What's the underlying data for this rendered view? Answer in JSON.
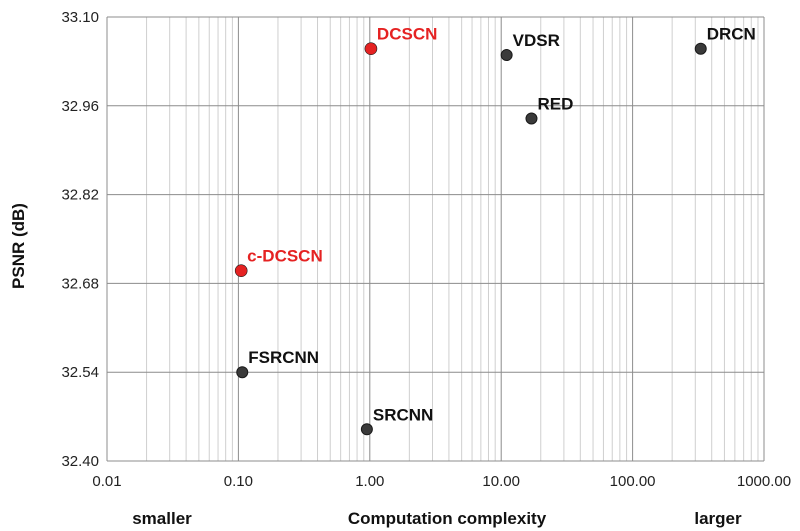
{
  "chart_data": {
    "type": "scatter",
    "xscale": "log",
    "xlim": [
      0.01,
      1000
    ],
    "ylim": [
      32.4,
      33.1
    ],
    "xticks": [
      "0.01",
      "0.10",
      "1.00",
      "10.00",
      "100.00",
      "1000.00"
    ],
    "yticks": [
      "32.40",
      "32.54",
      "32.68",
      "32.82",
      "32.96",
      "33.10"
    ],
    "ylabel": "PSNR (dB)",
    "xlabel": "Computation complexity",
    "xlabel_left": "smaller",
    "xlabel_right": "larger",
    "grid": true,
    "points": [
      {
        "name": "DCSCN",
        "x": 1.02,
        "y": 33.05,
        "highlight": true
      },
      {
        "name": "c-DCSCN",
        "x": 0.105,
        "y": 32.7,
        "highlight": true
      },
      {
        "name": "VDSR",
        "x": 11.0,
        "y": 33.04,
        "highlight": false
      },
      {
        "name": "DRCN",
        "x": 330.0,
        "y": 33.05,
        "highlight": false
      },
      {
        "name": "RED",
        "x": 17.0,
        "y": 32.94,
        "highlight": false
      },
      {
        "name": "FSRCNN",
        "x": 0.107,
        "y": 32.54,
        "highlight": false
      },
      {
        "name": "SRCNN",
        "x": 0.95,
        "y": 32.45,
        "highlight": false
      }
    ]
  },
  "colors": {
    "highlight": "#e52222",
    "normal": "#3a3a3a",
    "normal_label": "#111111",
    "grid_major": "#8c8c8c",
    "grid_minor": "#cfcfcf"
  }
}
